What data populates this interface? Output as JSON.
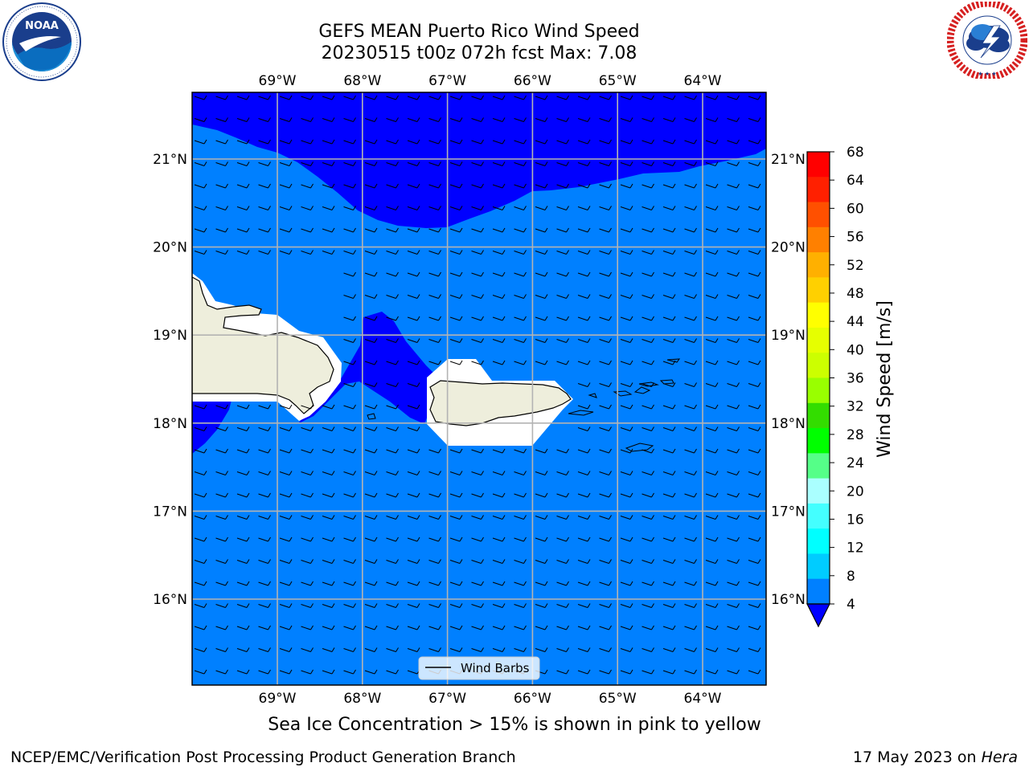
{
  "header": {
    "title_line1": "GEFS MEAN Puerto Rico Wind Speed",
    "title_line2": "20230515 t00z 072h fcst   Max: 7.08"
  },
  "logos": {
    "left": "noaa-logo",
    "right": "national-weather-service-logo"
  },
  "map": {
    "lon_ticks": [
      "69°W",
      "68°W",
      "67°W",
      "66°W",
      "65°W",
      "64°W"
    ],
    "lat_ticks": [
      "21°N",
      "20°N",
      "19°N",
      "18°N",
      "17°N",
      "16°N"
    ],
    "legend_label": "Wind Barbs",
    "colors": {
      "wind_4_8": "#0080ff",
      "wind_below_4": "#0000ff",
      "land": "#eeeedc",
      "masked": "#ffffff"
    }
  },
  "colorbar": {
    "label": "Wind Speed [m/s]",
    "ticks": [
      "68",
      "64",
      "60",
      "56",
      "52",
      "48",
      "44",
      "40",
      "36",
      "32",
      "28",
      "24",
      "20",
      "16",
      "12",
      "8",
      "4"
    ],
    "colors": [
      "#ff0000",
      "#ff2000",
      "#ff5000",
      "#ff8000",
      "#ffb000",
      "#ffd000",
      "#ffff00",
      "#e6ff00",
      "#ccff00",
      "#99ff00",
      "#33dd00",
      "#00ff00",
      "#55ff88",
      "#aaffff",
      "#44ffff",
      "#00ffff",
      "#00ccff",
      "#0080ff"
    ],
    "under_color": "#0000ff"
  },
  "caption": "Sea Ice Concentration > 15% is shown in pink to yellow",
  "footer": {
    "left": "NCEP/EMC/Verification Post Processing Product Generation Branch",
    "right_date": "17 May 2023 on ",
    "right_host": "Hera"
  }
}
